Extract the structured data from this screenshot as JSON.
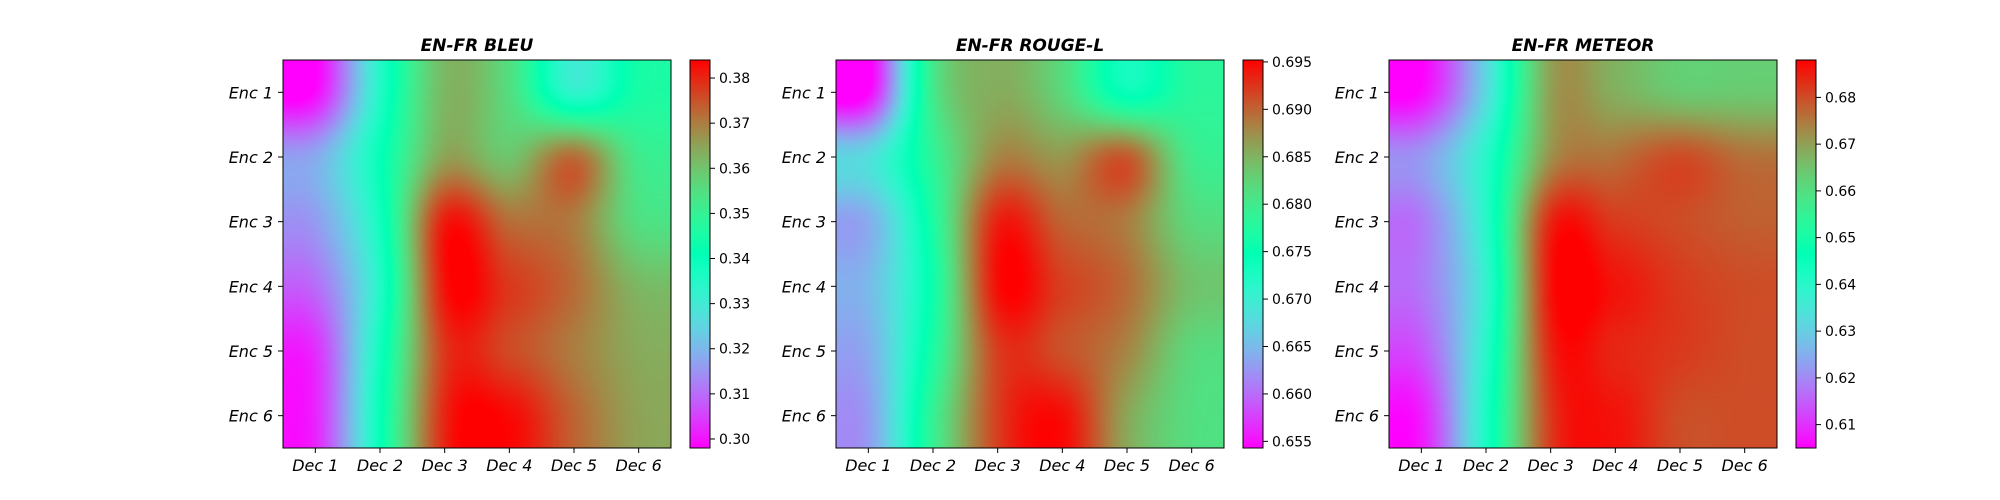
{
  "chart_data": [
    {
      "type": "heatmap",
      "title": "EN-FR BLEU",
      "x_labels": [
        "Dec 1",
        "Dec 2",
        "Dec 3",
        "Dec 4",
        "Dec 5",
        "Dec 6"
      ],
      "y_labels": [
        "Enc 1",
        "Enc 2",
        "Enc 3",
        "Enc 4",
        "Enc 5",
        "Enc 6"
      ],
      "values": [
        [
          0.299,
          0.335,
          0.362,
          0.355,
          0.333,
          0.345
        ],
        [
          0.318,
          0.34,
          0.365,
          0.36,
          0.372,
          0.352
        ],
        [
          0.316,
          0.338,
          0.381,
          0.372,
          0.37,
          0.355
        ],
        [
          0.31,
          0.335,
          0.382,
          0.378,
          0.372,
          0.362
        ],
        [
          0.303,
          0.338,
          0.378,
          0.376,
          0.37,
          0.364
        ],
        [
          0.302,
          0.34,
          0.38,
          0.383,
          0.373,
          0.365
        ]
      ],
      "colorbar": {
        "min": 0.298,
        "max": 0.384,
        "ticks": [
          "0.30",
          "0.31",
          "0.32",
          "0.33",
          "0.34",
          "0.35",
          "0.36",
          "0.37",
          "0.38"
        ]
      },
      "colormap": "rainbow"
    },
    {
      "type": "heatmap",
      "title": "EN-FR ROUGE-L",
      "x_labels": [
        "Dec 1",
        "Dec 2",
        "Dec 3",
        "Dec 4",
        "Dec 5",
        "Dec 6"
      ],
      "y_labels": [
        "Enc 1",
        "Enc 2",
        "Enc 3",
        "Enc 4",
        "Enc 5",
        "Enc 6"
      ],
      "values": [
        [
          0.6545,
          0.68,
          0.6855,
          0.682,
          0.674,
          0.678
        ],
        [
          0.668,
          0.6785,
          0.688,
          0.687,
          0.6905,
          0.68
        ],
        [
          0.664,
          0.677,
          0.6935,
          0.69,
          0.6885,
          0.682
        ],
        [
          0.665,
          0.676,
          0.6945,
          0.692,
          0.6895,
          0.684
        ],
        [
          0.664,
          0.677,
          0.692,
          0.691,
          0.688,
          0.682
        ],
        [
          0.663,
          0.679,
          0.692,
          0.6945,
          0.686,
          0.6815
        ]
      ],
      "colorbar": {
        "min": 0.6543,
        "max": 0.6952,
        "ticks": [
          "0.655",
          "0.660",
          "0.665",
          "0.670",
          "0.675",
          "0.680",
          "0.685",
          "0.690",
          "0.695"
        ]
      },
      "colormap": "rainbow"
    },
    {
      "type": "heatmap",
      "title": "EN-FR METEOR",
      "x_labels": [
        "Dec 1",
        "Dec 2",
        "Dec 3",
        "Dec 4",
        "Dec 5",
        "Dec 6"
      ],
      "y_labels": [
        "Enc 1",
        "Enc 2",
        "Enc 3",
        "Enc 4",
        "Enc 5",
        "Enc 6"
      ],
      "values": [
        [
          0.606,
          0.632,
          0.67,
          0.668,
          0.664,
          0.664
        ],
        [
          0.622,
          0.64,
          0.672,
          0.676,
          0.68,
          0.676
        ],
        [
          0.618,
          0.64,
          0.684,
          0.682,
          0.68,
          0.678
        ],
        [
          0.618,
          0.638,
          0.686,
          0.686,
          0.682,
          0.68
        ],
        [
          0.614,
          0.64,
          0.684,
          0.684,
          0.682,
          0.68
        ],
        [
          0.608,
          0.642,
          0.682,
          0.686,
          0.68,
          0.68
        ]
      ],
      "colorbar": {
        "min": 0.605,
        "max": 0.688,
        "ticks": [
          "0.61",
          "0.62",
          "0.63",
          "0.64",
          "0.65",
          "0.66",
          "0.67",
          "0.68"
        ]
      },
      "colormap": "rainbow"
    }
  ]
}
